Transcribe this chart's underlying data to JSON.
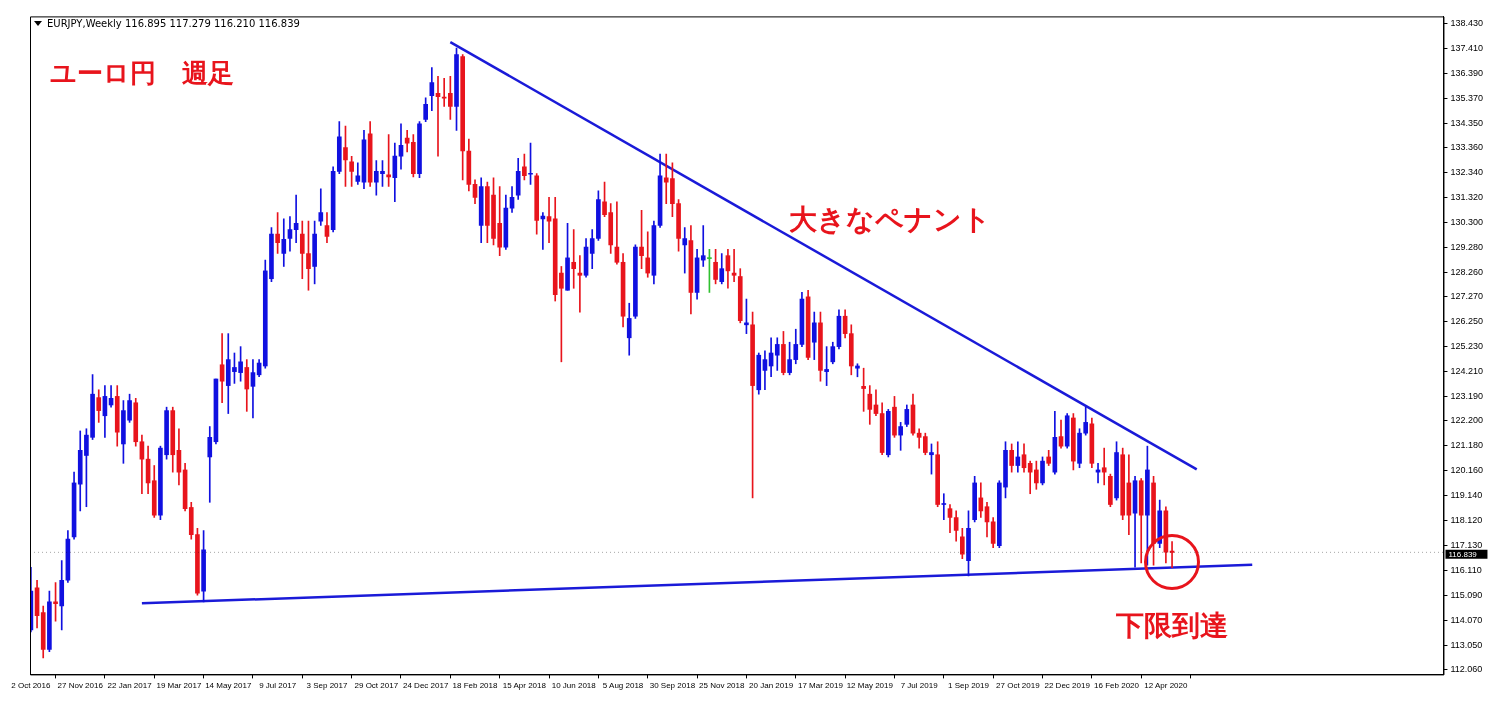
{
  "chart_data": {
    "type": "candlestick",
    "title": "ユーロ円　週足",
    "subtitle": "EURJPY,Weekly  116.895 117.279 116.210 116.839",
    "x": [
      "2016-10-02",
      "2016-10-09",
      "2016-10-16",
      "2016-10-23",
      "2016-10-30",
      "2016-11-06",
      "2016-11-13",
      "2016-11-20",
      "2016-11-27",
      "2016-12-04",
      "2016-12-11",
      "2016-12-18",
      "2016-12-25",
      "2017-01-01",
      "2017-01-08",
      "2017-01-15",
      "2017-01-22",
      "2017-01-29",
      "2017-02-05",
      "2017-02-12",
      "2017-02-19",
      "2017-02-26",
      "2017-03-05",
      "2017-03-12",
      "2017-03-19",
      "2017-03-26",
      "2017-04-02",
      "2017-04-09",
      "2017-04-16",
      "2017-04-23",
      "2017-04-30",
      "2017-05-07",
      "2017-05-14",
      "2017-05-21",
      "2017-05-28",
      "2017-06-04",
      "2017-06-11",
      "2017-06-18",
      "2017-06-25",
      "2017-07-02",
      "2017-07-09",
      "2017-07-16",
      "2017-07-23",
      "2017-07-30",
      "2017-08-06",
      "2017-08-13",
      "2017-08-20",
      "2017-08-27",
      "2017-09-03",
      "2017-09-10",
      "2017-09-17",
      "2017-09-24",
      "2017-10-01",
      "2017-10-08",
      "2017-10-15",
      "2017-10-22",
      "2017-10-29",
      "2017-11-05",
      "2017-11-12",
      "2017-11-19",
      "2017-11-26",
      "2017-12-03",
      "2017-12-10",
      "2017-12-17",
      "2017-12-24",
      "2017-12-31",
      "2018-01-07",
      "2018-01-14",
      "2018-01-21",
      "2018-01-28",
      "2018-02-04",
      "2018-02-11",
      "2018-02-18",
      "2018-02-25",
      "2018-03-04",
      "2018-03-11",
      "2018-03-18",
      "2018-03-25",
      "2018-04-01",
      "2018-04-08",
      "2018-04-15",
      "2018-04-22",
      "2018-04-29",
      "2018-05-06",
      "2018-05-13",
      "2018-05-20",
      "2018-05-27",
      "2018-06-03",
      "2018-06-10",
      "2018-06-17",
      "2018-06-24",
      "2018-07-01",
      "2018-07-08",
      "2018-07-15",
      "2018-07-22",
      "2018-07-29",
      "2018-08-05",
      "2018-08-12",
      "2018-08-19",
      "2018-08-26",
      "2018-09-02",
      "2018-09-09",
      "2018-09-16",
      "2018-09-23",
      "2018-09-30",
      "2018-10-07",
      "2018-10-14",
      "2018-10-21",
      "2018-10-28",
      "2018-11-04",
      "2018-11-11",
      "2018-11-18",
      "2018-11-25",
      "2018-12-02",
      "2018-12-09",
      "2018-12-16",
      "2018-12-23",
      "2018-12-30",
      "2019-01-06",
      "2019-01-13",
      "2019-01-20",
      "2019-01-27",
      "2019-02-03",
      "2019-02-10",
      "2019-02-17",
      "2019-02-24",
      "2019-03-03",
      "2019-03-10",
      "2019-03-17",
      "2019-03-24",
      "2019-03-31",
      "2019-04-07",
      "2019-04-14",
      "2019-04-21",
      "2019-04-28",
      "2019-05-05",
      "2019-05-12",
      "2019-05-19",
      "2019-05-26",
      "2019-06-02",
      "2019-06-09",
      "2019-06-16",
      "2019-06-23",
      "2019-06-30",
      "2019-07-07",
      "2019-07-14",
      "2019-07-21",
      "2019-07-28",
      "2019-08-04",
      "2019-08-11",
      "2019-08-18",
      "2019-08-25",
      "2019-09-01",
      "2019-09-08",
      "2019-09-15",
      "2019-09-22",
      "2019-09-29",
      "2019-10-06",
      "2019-10-13",
      "2019-10-20",
      "2019-10-27",
      "2019-11-03",
      "2019-11-10",
      "2019-11-17",
      "2019-11-24",
      "2019-12-01",
      "2019-12-08",
      "2019-12-15",
      "2019-12-22",
      "2019-12-29",
      "2020-01-05",
      "2020-01-12",
      "2020-01-19",
      "2020-01-26",
      "2020-02-02",
      "2020-02-09",
      "2020-02-16",
      "2020-02-23",
      "2020-03-01",
      "2020-03-08",
      "2020-03-15",
      "2020-03-22",
      "2020-03-29",
      "2020-04-05",
      "2020-04-12",
      "2020-04-19"
    ],
    "ohlc": [
      [
        113.67,
        116.23,
        113.59,
        115.26
      ],
      [
        115.39,
        115.7,
        113.76,
        114.26
      ],
      [
        114.38,
        114.65,
        112.53,
        112.88
      ],
      [
        112.88,
        115.26,
        112.79,
        114.82
      ],
      [
        114.82,
        115.61,
        114.03,
        114.75
      ],
      [
        114.65,
        116.5,
        113.67,
        115.7
      ],
      [
        115.7,
        117.73,
        115.61,
        117.38
      ],
      [
        117.47,
        120.11,
        117.38,
        119.67
      ],
      [
        119.62,
        121.79,
        118.53,
        121.0
      ],
      [
        120.79,
        121.88,
        118.7,
        121.62
      ],
      [
        121.53,
        124.09,
        121.44,
        123.29
      ],
      [
        123.15,
        123.47,
        122.14,
        122.62
      ],
      [
        122.41,
        123.64,
        121.53,
        123.2
      ],
      [
        122.85,
        123.64,
        122.76,
        123.12
      ],
      [
        123.2,
        123.64,
        121.17,
        121.74
      ],
      [
        121.26,
        123.03,
        120.47,
        122.62
      ],
      [
        122.23,
        123.29,
        122.14,
        123.03
      ],
      [
        122.94,
        123.12,
        121.17,
        121.35
      ],
      [
        121.35,
        121.62,
        119.23,
        120.64
      ],
      [
        120.64,
        121.17,
        119.23,
        119.67
      ],
      [
        119.76,
        120.38,
        118.26,
        118.35
      ],
      [
        118.35,
        121.17,
        118.17,
        121.09
      ],
      [
        120.82,
        122.76,
        120.64,
        122.62
      ],
      [
        122.62,
        122.76,
        120.11,
        120.82
      ],
      [
        121.0,
        121.88,
        119.59,
        120.11
      ],
      [
        120.2,
        120.47,
        118.53,
        118.62
      ],
      [
        118.67,
        118.88,
        117.38,
        117.56
      ],
      [
        117.56,
        117.82,
        115.09,
        115.17
      ],
      [
        115.26,
        117.73,
        114.82,
        116.94
      ],
      [
        120.73,
        121.97,
        118.88,
        121.53
      ],
      [
        121.35,
        123.91,
        121.26,
        123.91
      ],
      [
        124.49,
        125.76,
        122.94,
        123.82
      ],
      [
        123.64,
        125.76,
        122.5,
        124.7
      ],
      [
        124.21,
        124.97,
        123.73,
        124.38
      ],
      [
        124.17,
        125.23,
        123.82,
        124.61
      ],
      [
        124.38,
        124.7,
        122.59,
        123.5
      ],
      [
        123.61,
        124.7,
        122.32,
        124.17
      ],
      [
        124.08,
        124.7,
        124.0,
        124.56
      ],
      [
        124.44,
        128.76,
        124.35,
        128.32
      ],
      [
        128.0,
        130.09,
        127.88,
        129.82
      ],
      [
        129.82,
        130.7,
        129.03,
        129.47
      ],
      [
        129.03,
        130.44,
        128.5,
        129.61
      ],
      [
        129.64,
        130.53,
        129.12,
        130.0
      ],
      [
        130.0,
        131.41,
        129.47,
        130.26
      ],
      [
        129.82,
        130.35,
        128.0,
        129.03
      ],
      [
        129.03,
        130.35,
        127.53,
        128.41
      ],
      [
        128.5,
        130.35,
        127.79,
        129.82
      ],
      [
        130.35,
        131.67,
        130.17,
        130.7
      ],
      [
        130.17,
        130.7,
        129.47,
        129.73
      ],
      [
        130.0,
        132.56,
        129.91,
        132.38
      ],
      [
        132.38,
        134.41,
        132.29,
        133.79
      ],
      [
        133.35,
        134.23,
        131.76,
        132.85
      ],
      [
        132.77,
        132.99,
        131.76,
        132.38
      ],
      [
        131.97,
        132.73,
        131.85,
        132.2
      ],
      [
        131.94,
        134.05,
        131.67,
        133.67
      ],
      [
        133.91,
        134.41,
        131.76,
        131.94
      ],
      [
        131.94,
        132.82,
        131.41,
        132.38
      ],
      [
        132.29,
        132.82,
        131.76,
        132.38
      ],
      [
        132.24,
        133.88,
        131.76,
        132.15
      ],
      [
        132.12,
        133.53,
        131.14,
        133.0
      ],
      [
        133.0,
        134.32,
        132.47,
        133.44
      ],
      [
        133.74,
        134.05,
        133.17,
        133.53
      ],
      [
        133.56,
        133.88,
        132.15,
        132.29
      ],
      [
        132.29,
        134.41,
        132.12,
        134.32
      ],
      [
        134.5,
        135.38,
        134.41,
        135.11
      ],
      [
        135.47,
        136.61,
        134.85,
        136.0
      ],
      [
        135.56,
        136.26,
        133.0,
        135.43
      ],
      [
        135.41,
        136.17,
        135.03,
        135.36
      ],
      [
        135.56,
        136.26,
        134.5,
        135.03
      ],
      [
        135.03,
        137.41,
        134.05,
        137.14
      ],
      [
        137.06,
        137.14,
        132.03,
        133.21
      ],
      [
        133.21,
        133.7,
        131.58,
        131.85
      ],
      [
        131.85,
        132.03,
        131.06,
        131.32
      ],
      [
        130.17,
        132.12,
        129.47,
        131.76
      ],
      [
        131.76,
        131.94,
        129.47,
        130.17
      ],
      [
        131.41,
        132.12,
        129.38,
        129.64
      ],
      [
        130.26,
        131.76,
        128.94,
        129.29
      ],
      [
        129.29,
        131.41,
        129.2,
        130.88
      ],
      [
        130.88,
        131.76,
        130.7,
        131.32
      ],
      [
        131.41,
        132.91,
        131.23,
        132.38
      ],
      [
        132.56,
        133.08,
        132.03,
        132.2
      ],
      [
        132.26,
        133.53,
        131.85,
        132.29
      ],
      [
        132.2,
        132.29,
        129.82,
        130.38
      ],
      [
        130.44,
        130.7,
        129.2,
        130.56
      ],
      [
        130.53,
        131.32,
        129.47,
        130.35
      ],
      [
        130.44,
        131.32,
        127.09,
        127.35
      ],
      [
        128.23,
        128.5,
        124.61,
        127.61
      ],
      [
        127.53,
        130.26,
        127.53,
        128.85
      ],
      [
        128.67,
        130.0,
        127.61,
        128.41
      ],
      [
        128.23,
        128.94,
        126.64,
        128.14
      ],
      [
        128.14,
        129.64,
        128.06,
        129.29
      ],
      [
        129.03,
        130.0,
        128.41,
        129.64
      ],
      [
        129.64,
        131.58,
        129.56,
        131.23
      ],
      [
        131.14,
        131.94,
        130.53,
        130.61
      ],
      [
        130.7,
        131.06,
        129.03,
        129.38
      ],
      [
        129.29,
        131.14,
        128.59,
        128.67
      ],
      [
        128.67,
        129.03,
        126.03,
        126.47
      ],
      [
        125.59,
        127.0,
        124.88,
        126.38
      ],
      [
        126.47,
        129.38,
        126.38,
        129.29
      ],
      [
        129.29,
        130.79,
        128.41,
        128.94
      ],
      [
        128.85,
        129.91,
        128.06,
        128.23
      ],
      [
        128.14,
        130.35,
        127.79,
        130.17
      ],
      [
        130.17,
        133.08,
        130.09,
        132.2
      ],
      [
        132.12,
        133.08,
        131.06,
        131.94
      ],
      [
        132.08,
        132.73,
        130.53,
        131.06
      ],
      [
        131.06,
        131.23,
        129.12,
        129.64
      ],
      [
        129.38,
        130.09,
        128.23,
        129.64
      ],
      [
        129.56,
        130.17,
        126.56,
        127.44
      ],
      [
        127.44,
        129.2,
        127.17,
        128.85
      ],
      [
        128.76,
        130.17,
        128.5,
        128.94
      ],
      [
        128.82,
        129.2,
        127.44,
        128.82
      ],
      [
        128.67,
        129.2,
        127.79,
        127.97
      ],
      [
        127.88,
        129.03,
        127.79,
        128.41
      ],
      [
        128.94,
        129.2,
        127.61,
        128.32
      ],
      [
        128.23,
        129.2,
        127.88,
        128.14
      ],
      [
        128.09,
        128.41,
        126.2,
        126.29
      ],
      [
        126.12,
        127.17,
        125.76,
        126.2
      ],
      [
        126.12,
        126.64,
        119.06,
        123.64
      ],
      [
        123.47,
        124.97,
        123.29,
        124.88
      ],
      [
        124.26,
        125.06,
        123.47,
        124.7
      ],
      [
        124.44,
        125.59,
        124.0,
        124.97
      ],
      [
        124.88,
        125.59,
        124.26,
        125.32
      ],
      [
        125.32,
        125.85,
        124.08,
        124.17
      ],
      [
        124.17,
        125.41,
        124.08,
        124.7
      ],
      [
        124.7,
        125.94,
        124.53,
        125.32
      ],
      [
        125.32,
        127.44,
        125.23,
        127.17
      ],
      [
        127.26,
        127.53,
        124.7,
        124.79
      ],
      [
        125.41,
        126.64,
        124.7,
        126.2
      ],
      [
        126.2,
        126.64,
        123.82,
        124.26
      ],
      [
        124.21,
        125.23,
        123.64,
        124.3
      ],
      [
        124.61,
        125.41,
        124.53,
        125.23
      ],
      [
        125.23,
        126.73,
        125.14,
        126.47
      ],
      [
        126.47,
        126.73,
        125.59,
        125.76
      ],
      [
        125.76,
        126.12,
        124.08,
        124.44
      ],
      [
        124.35,
        124.53,
        124.0,
        124.44
      ],
      [
        123.61,
        124.35,
        122.59,
        123.52
      ],
      [
        123.29,
        123.64,
        122.06,
        122.67
      ],
      [
        122.85,
        123.47,
        122.41,
        122.5
      ],
      [
        122.5,
        122.94,
        120.82,
        120.91
      ],
      [
        120.82,
        122.67,
        120.73,
        122.59
      ],
      [
        122.76,
        123.2,
        121.53,
        121.62
      ],
      [
        121.62,
        122.14,
        121.0,
        121.97
      ],
      [
        122.06,
        122.85,
        121.97,
        122.67
      ],
      [
        122.85,
        123.29,
        121.62,
        121.7
      ],
      [
        121.7,
        121.88,
        121.09,
        121.53
      ],
      [
        121.56,
        121.7,
        120.82,
        120.91
      ],
      [
        120.82,
        121.26,
        120.03,
        120.91
      ],
      [
        120.82,
        121.35,
        118.7,
        118.79
      ],
      [
        118.79,
        119.23,
        118.17,
        118.82
      ],
      [
        118.62,
        118.79,
        117.64,
        118.26
      ],
      [
        118.26,
        118.53,
        117.29,
        117.73
      ],
      [
        117.47,
        117.82,
        116.58,
        116.76
      ],
      [
        116.5,
        118.53,
        115.88,
        117.82
      ],
      [
        118.17,
        119.94,
        118.08,
        119.67
      ],
      [
        119.06,
        119.67,
        118.26,
        118.53
      ],
      [
        118.7,
        118.88,
        117.47,
        118.08
      ],
      [
        118.08,
        118.26,
        117.03,
        117.2
      ],
      [
        117.11,
        119.76,
        117.03,
        119.67
      ],
      [
        119.5,
        121.35,
        119.06,
        121.0
      ],
      [
        121.0,
        121.26,
        120.11,
        120.38
      ],
      [
        120.38,
        121.35,
        120.11,
        120.73
      ],
      [
        120.82,
        121.26,
        120.11,
        120.29
      ],
      [
        120.47,
        120.56,
        119.23,
        120.11
      ],
      [
        120.2,
        120.56,
        119.41,
        119.67
      ],
      [
        119.67,
        120.73,
        119.59,
        120.56
      ],
      [
        120.73,
        121.0,
        120.38,
        120.47
      ],
      [
        120.11,
        122.59,
        120.03,
        121.53
      ],
      [
        121.56,
        122.23,
        121.09,
        121.17
      ],
      [
        121.17,
        122.5,
        121.09,
        122.41
      ],
      [
        122.32,
        122.5,
        120.2,
        120.56
      ],
      [
        120.47,
        121.88,
        120.29,
        121.7
      ],
      [
        121.7,
        122.76,
        121.62,
        122.14
      ],
      [
        122.08,
        122.32,
        120.29,
        120.47
      ],
      [
        120.11,
        120.47,
        119.67,
        120.2
      ],
      [
        120.29,
        121.09,
        119.59,
        120.11
      ],
      [
        119.94,
        120.03,
        118.7,
        118.79
      ],
      [
        119.06,
        121.35,
        118.97,
        120.91
      ],
      [
        120.82,
        121.09,
        118.17,
        118.35
      ],
      [
        119.67,
        120.82,
        117.56,
        118.35
      ],
      [
        118.44,
        119.94,
        116.23,
        119.76
      ],
      [
        119.76,
        119.85,
        116.41,
        118.35
      ],
      [
        118.35,
        121.17,
        116.32,
        120.2
      ],
      [
        119.67,
        119.94,
        116.32,
        117.2
      ],
      [
        117.2,
        118.97,
        117.03,
        118.53
      ],
      [
        118.53,
        118.7,
        116.41,
        116.85
      ],
      [
        116.895,
        117.279,
        116.21,
        116.839
      ]
    ],
    "colors": [
      "#1010e0",
      "#e8141c",
      "#e8141c",
      "#1010e0",
      "#e8141c",
      "#1010e0",
      "#1010e0",
      "#1010e0",
      "#1010e0",
      "#1010e0",
      "#1010e0",
      "#e8141c",
      "#1010e0",
      "#1010e0",
      "#e8141c",
      "#1010e0",
      "#1010e0",
      "#e8141c",
      "#e8141c",
      "#e8141c",
      "#e8141c",
      "#1010e0",
      "#1010e0",
      "#e8141c",
      "#e8141c",
      "#e8141c",
      "#e8141c",
      "#e8141c",
      "#1010e0",
      "#1010e0",
      "#1010e0",
      "#e8141c",
      "#1010e0",
      "#1010e0",
      "#1010e0",
      "#e8141c",
      "#1010e0",
      "#1010e0",
      "#1010e0",
      "#1010e0",
      "#e8141c",
      "#1010e0",
      "#1010e0",
      "#1010e0",
      "#e8141c",
      "#e8141c",
      "#1010e0",
      "#1010e0",
      "#e8141c",
      "#1010e0",
      "#1010e0",
      "#e8141c",
      "#e8141c",
      "#1010e0",
      "#1010e0",
      "#e8141c",
      "#1010e0",
      "#1010e0",
      "#e8141c",
      "#1010e0",
      "#1010e0",
      "#e8141c",
      "#e8141c",
      "#1010e0",
      "#1010e0",
      "#1010e0",
      "#e8141c",
      "#e8141c",
      "#e8141c",
      "#1010e0",
      "#e8141c",
      "#e8141c",
      "#e8141c",
      "#1010e0",
      "#e8141c",
      "#e8141c",
      "#e8141c",
      "#1010e0",
      "#1010e0",
      "#1010e0",
      "#e8141c",
      "#1010e0",
      "#e8141c",
      "#1010e0",
      "#e8141c",
      "#e8141c",
      "#e8141c",
      "#1010e0",
      "#e8141c",
      "#e8141c",
      "#1010e0",
      "#1010e0",
      "#1010e0",
      "#e8141c",
      "#e8141c",
      "#e8141c",
      "#e8141c",
      "#1010e0",
      "#1010e0",
      "#e8141c",
      "#e8141c",
      "#1010e0",
      "#1010e0",
      "#e8141c",
      "#e8141c",
      "#e8141c",
      "#1010e0",
      "#e8141c",
      "#1010e0",
      "#1010e0",
      "#30c030",
      "#e8141c",
      "#1010e0",
      "#e8141c",
      "#e8141c",
      "#e8141c",
      "#1010e0",
      "#e8141c",
      "#1010e0",
      "#1010e0",
      "#1010e0",
      "#1010e0",
      "#e8141c",
      "#1010e0",
      "#1010e0",
      "#1010e0",
      "#e8141c",
      "#1010e0",
      "#e8141c",
      "#1010e0",
      "#1010e0",
      "#1010e0",
      "#e8141c",
      "#e8141c",
      "#1010e0",
      "#e8141c",
      "#e8141c",
      "#e8141c",
      "#e8141c",
      "#1010e0",
      "#e8141c",
      "#1010e0",
      "#1010e0",
      "#e8141c",
      "#e8141c",
      "#e8141c",
      "#1010e0",
      "#e8141c",
      "#1010e0",
      "#e8141c",
      "#e8141c",
      "#e8141c",
      "#1010e0",
      "#1010e0",
      "#e8141c",
      "#e8141c",
      "#e8141c",
      "#1010e0",
      "#1010e0",
      "#e8141c",
      "#1010e0",
      "#e8141c",
      "#e8141c",
      "#e8141c",
      "#1010e0",
      "#e8141c",
      "#1010e0",
      "#e8141c",
      "#1010e0",
      "#e8141c",
      "#1010e0",
      "#1010e0",
      "#e8141c",
      "#1010e0",
      "#e8141c",
      "#e8141c",
      "#1010e0",
      "#e8141c",
      "#e8141c",
      "#1010e0",
      "#e8141c",
      "#1010e0",
      "#e8141c",
      "#1010e0",
      "#e8141c",
      "#e8141c"
    ],
    "series": [
      {
        "type": "line",
        "color": "#1a1ad8",
        "x": [
          "2018-01-21",
          "2020-05-17"
        ],
        "values": [
          137.65,
          120.22
        ]
      },
      {
        "type": "line",
        "color": "#1a1ad8",
        "x": [
          "2017-02-05",
          "2020-07-19"
        ],
        "values": [
          114.76,
          116.33
        ]
      }
    ],
    "xlim": [
      "2016-10-01",
      "2021-02-21"
    ],
    "xticks": [
      {
        "value": "2016-10-02",
        "label": "2 Oct 2016"
      },
      {
        "value": "2016-11-27",
        "label": "27 Nov 2016"
      },
      {
        "value": "2017-01-22",
        "label": "22 Jan 2017"
      },
      {
        "value": "2017-03-19",
        "label": "19 Mar 2017"
      },
      {
        "value": "2017-05-14",
        "label": "14 May 2017"
      },
      {
        "value": "2017-07-09",
        "label": "9 Jul 2017"
      },
      {
        "value": "2017-09-03",
        "label": "3 Sep 2017"
      },
      {
        "value": "2017-10-29",
        "label": "29 Oct 2017"
      },
      {
        "value": "2017-12-24",
        "label": "24 Dec 2017"
      },
      {
        "value": "2018-02-18",
        "label": "18 Feb 2018"
      },
      {
        "value": "2018-04-15",
        "label": "15 Apr 2018"
      },
      {
        "value": "2018-06-10",
        "label": "10 Jun 2018"
      },
      {
        "value": "2018-08-05",
        "label": "5 Aug 2018"
      },
      {
        "value": "2018-09-30",
        "label": "30 Sep 2018"
      },
      {
        "value": "2018-11-25",
        "label": "25 Nov 2018"
      },
      {
        "value": "2019-01-20",
        "label": "20 Jan 2019"
      },
      {
        "value": "2019-03-17",
        "label": "17 Mar 2019"
      },
      {
        "value": "2019-05-12",
        "label": "12 May 2019"
      },
      {
        "value": "2019-07-07",
        "label": "7 Jul 2019"
      },
      {
        "value": "2019-09-01",
        "label": "1 Sep 2019"
      },
      {
        "value": "2019-10-27",
        "label": "27 Oct 2019"
      },
      {
        "value": "2019-12-22",
        "label": "22 Dec 2019"
      },
      {
        "value": "2020-02-16",
        "label": "16 Feb 2020"
      },
      {
        "value": "2020-04-12",
        "label": "12 Apr 2020"
      }
    ],
    "ylim": [
      111.86,
      138.7
    ],
    "yticks": [
      {
        "value": 138.43,
        "label": "138.430"
      },
      {
        "value": 137.41,
        "label": "137.410"
      },
      {
        "value": 136.39,
        "label": "136.390"
      },
      {
        "value": 135.37,
        "label": "135.370"
      },
      {
        "value": 134.35,
        "label": "134.350"
      },
      {
        "value": 133.36,
        "label": "133.360"
      },
      {
        "value": 132.34,
        "label": "132.340"
      },
      {
        "value": 131.32,
        "label": "131.320"
      },
      {
        "value": 130.3,
        "label": "130.300"
      },
      {
        "value": 129.28,
        "label": "129.280"
      },
      {
        "value": 128.26,
        "label": "128.260"
      },
      {
        "value": 127.27,
        "label": "127.270"
      },
      {
        "value": 126.25,
        "label": "126.250"
      },
      {
        "value": 125.23,
        "label": "125.230"
      },
      {
        "value": 124.21,
        "label": "124.210"
      },
      {
        "value": 123.19,
        "label": "123.190"
      },
      {
        "value": 122.2,
        "label": "122.200"
      },
      {
        "value": 121.18,
        "label": "121.180"
      },
      {
        "value": 120.16,
        "label": "120.160"
      },
      {
        "value": 119.14,
        "label": "119.140"
      },
      {
        "value": 118.12,
        "label": "118.120"
      },
      {
        "value": 117.13,
        "label": "117.130"
      },
      {
        "value": 116.11,
        "label": "116.110"
      },
      {
        "value": 115.09,
        "label": "115.090"
      },
      {
        "value": 114.07,
        "label": "114.070"
      },
      {
        "value": 113.05,
        "label": "113.050"
      },
      {
        "value": 112.06,
        "label": "112.060"
      }
    ],
    "ref_lines": [
      {
        "axis": "y",
        "value": 116.839,
        "label": "116.839",
        "color": "#000000"
      }
    ],
    "annotations": [
      "大きなペナント",
      {
        "text": "下限到達",
        "x": "2020-04-19",
        "y": 116.45
      }
    ],
    "legend": false,
    "grid": false
  }
}
